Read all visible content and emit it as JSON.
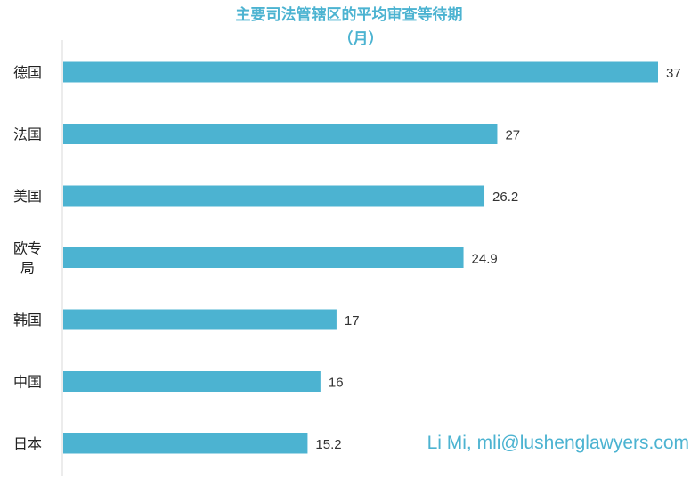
{
  "chart_data": {
    "type": "bar",
    "orientation": "horizontal",
    "title_lines": [
      "主要司法管辖区的平均审查等待期",
      "（月）"
    ],
    "categories": [
      "德国",
      "法国",
      "美国",
      "欧专局",
      "韩国",
      "中国",
      "日本"
    ],
    "values": [
      37,
      27,
      26.2,
      24.9,
      17,
      16,
      15.2
    ],
    "value_labels": [
      "37",
      "27",
      "26.2",
      "24.9",
      "17",
      "16",
      "15.2"
    ],
    "xlim": [
      0,
      37
    ],
    "grid": false,
    "legend": "none",
    "bar_color": "#4cb3d1",
    "title_color": "#4cb3d1",
    "annotation": "Li Mi, mli@lushenglawyers.com"
  }
}
